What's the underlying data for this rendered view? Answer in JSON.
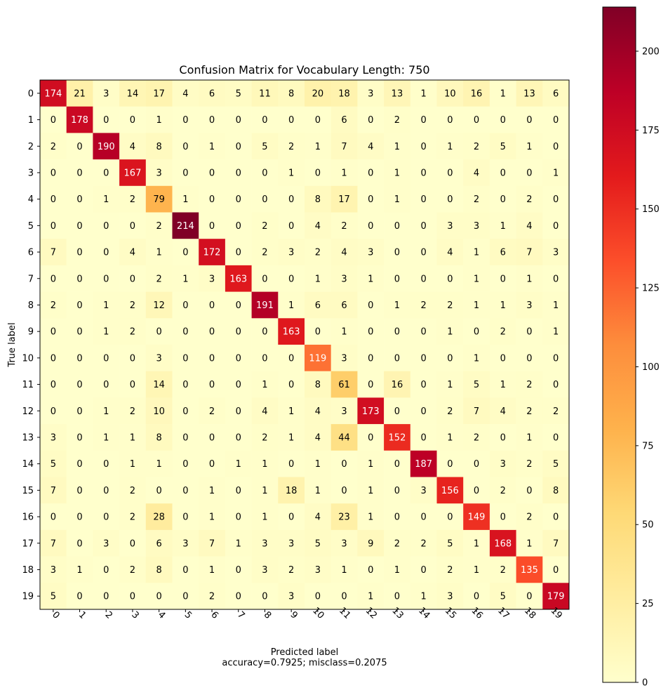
{
  "chart_data": {
    "type": "heatmap",
    "title": "Confusion Matrix for Vocabulary Length: 750",
    "xlabel": "Predicted label",
    "xlabel_note": "accuracy=0.7925; misclass=0.2075",
    "ylabel": "True label",
    "x_categories": [
      "0",
      "1",
      "2",
      "3",
      "4",
      "5",
      "6",
      "7",
      "8",
      "9",
      "10",
      "11",
      "12",
      "13",
      "14",
      "15",
      "16",
      "17",
      "18",
      "19"
    ],
    "y_categories": [
      "0",
      "1",
      "2",
      "3",
      "4",
      "5",
      "6",
      "7",
      "8",
      "9",
      "10",
      "11",
      "12",
      "13",
      "14",
      "15",
      "16",
      "17",
      "18",
      "19"
    ],
    "values": [
      [
        174,
        21,
        3,
        14,
        17,
        4,
        6,
        5,
        11,
        8,
        20,
        18,
        3,
        13,
        1,
        10,
        16,
        1,
        13,
        6
      ],
      [
        0,
        178,
        0,
        0,
        1,
        0,
        0,
        0,
        0,
        0,
        0,
        6,
        0,
        2,
        0,
        0,
        0,
        0,
        0,
        0
      ],
      [
        2,
        0,
        190,
        4,
        8,
        0,
        1,
        0,
        5,
        2,
        1,
        7,
        4,
        1,
        0,
        1,
        2,
        5,
        1,
        0
      ],
      [
        0,
        0,
        0,
        167,
        3,
        0,
        0,
        0,
        0,
        1,
        0,
        1,
        0,
        1,
        0,
        0,
        4,
        0,
        0,
        1
      ],
      [
        0,
        0,
        1,
        2,
        79,
        1,
        0,
        0,
        0,
        0,
        8,
        17,
        0,
        1,
        0,
        0,
        2,
        0,
        2,
        0
      ],
      [
        0,
        0,
        0,
        0,
        2,
        214,
        0,
        0,
        2,
        0,
        4,
        2,
        0,
        0,
        0,
        3,
        3,
        1,
        4,
        0
      ],
      [
        7,
        0,
        0,
        4,
        1,
        0,
        172,
        0,
        2,
        3,
        2,
        4,
        3,
        0,
        0,
        4,
        1,
        6,
        7,
        3
      ],
      [
        0,
        0,
        0,
        0,
        2,
        1,
        3,
        163,
        0,
        0,
        1,
        3,
        1,
        0,
        0,
        0,
        1,
        0,
        1,
        0
      ],
      [
        2,
        0,
        1,
        2,
        12,
        0,
        0,
        0,
        191,
        1,
        6,
        6,
        0,
        1,
        2,
        2,
        1,
        1,
        3,
        1
      ],
      [
        0,
        0,
        1,
        2,
        0,
        0,
        0,
        0,
        0,
        163,
        0,
        1,
        0,
        0,
        0,
        1,
        0,
        2,
        0,
        1
      ],
      [
        0,
        0,
        0,
        0,
        3,
        0,
        0,
        0,
        0,
        0,
        119,
        3,
        0,
        0,
        0,
        0,
        1,
        0,
        0,
        0
      ],
      [
        0,
        0,
        0,
        0,
        14,
        0,
        0,
        0,
        1,
        0,
        8,
        61,
        0,
        16,
        0,
        1,
        5,
        1,
        2,
        0
      ],
      [
        0,
        0,
        1,
        2,
        10,
        0,
        2,
        0,
        4,
        1,
        4,
        3,
        173,
        0,
        0,
        2,
        7,
        4,
        2,
        2
      ],
      [
        3,
        0,
        1,
        1,
        8,
        0,
        0,
        0,
        2,
        1,
        4,
        44,
        0,
        152,
        0,
        1,
        2,
        0,
        1,
        0
      ],
      [
        5,
        0,
        0,
        1,
        1,
        0,
        0,
        1,
        1,
        0,
        1,
        0,
        1,
        0,
        187,
        0,
        0,
        3,
        2,
        5
      ],
      [
        7,
        0,
        0,
        2,
        0,
        0,
        1,
        0,
        1,
        18,
        1,
        0,
        1,
        0,
        3,
        156,
        0,
        2,
        0,
        8
      ],
      [
        0,
        0,
        0,
        2,
        28,
        0,
        1,
        0,
        1,
        0,
        4,
        23,
        1,
        0,
        0,
        0,
        149,
        0,
        2,
        0
      ],
      [
        7,
        0,
        3,
        0,
        6,
        3,
        7,
        1,
        3,
        3,
        5,
        3,
        9,
        2,
        2,
        5,
        1,
        168,
        1,
        7
      ],
      [
        3,
        1,
        0,
        2,
        8,
        0,
        1,
        0,
        3,
        2,
        3,
        1,
        0,
        1,
        0,
        2,
        1,
        2,
        135,
        0
      ],
      [
        5,
        0,
        0,
        0,
        0,
        0,
        2,
        0,
        0,
        3,
        0,
        0,
        1,
        0,
        1,
        3,
        0,
        5,
        0,
        179
      ]
    ],
    "colormap": "YlOrRd",
    "color_stops": [
      "#ffffcc",
      "#ffeda0",
      "#fed976",
      "#feb24c",
      "#fd8d3c",
      "#fc4e2a",
      "#e31a1c",
      "#bd0026",
      "#800026"
    ],
    "vmin": 0,
    "vmax": 214,
    "colorbar_ticks": [
      "0",
      "25",
      "50",
      "75",
      "100",
      "125",
      "150",
      "175",
      "200"
    ],
    "text_color_light": "#ffffff",
    "text_color_dark": "#000000",
    "text_threshold": 107,
    "grid": false
  }
}
